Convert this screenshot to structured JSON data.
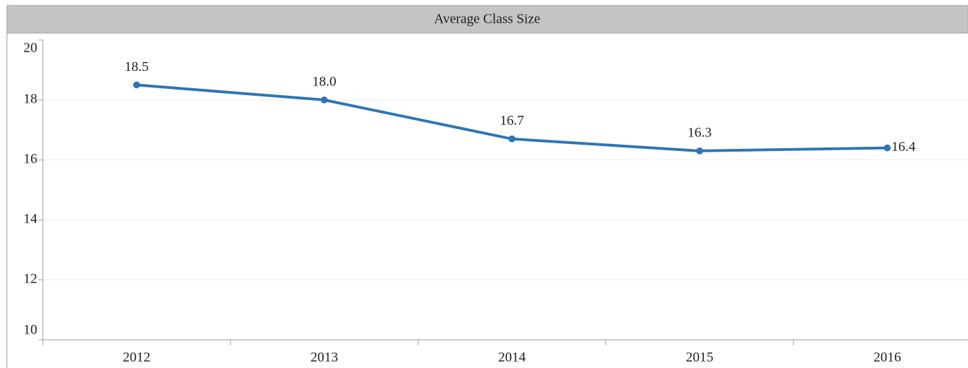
{
  "chart_data": {
    "type": "line",
    "title": "Average Class Size",
    "categories": [
      "2012",
      "2013",
      "2014",
      "2015",
      "2016"
    ],
    "values": [
      18.5,
      18.0,
      16.7,
      16.3,
      16.4
    ],
    "value_labels": [
      "18.5",
      "18.0",
      "16.7",
      "16.3",
      "16.4"
    ],
    "color": "#2e75b6",
    "ylim": [
      10,
      20
    ],
    "yticks": [
      10,
      12,
      14,
      16,
      18,
      20
    ],
    "grid": true
  }
}
